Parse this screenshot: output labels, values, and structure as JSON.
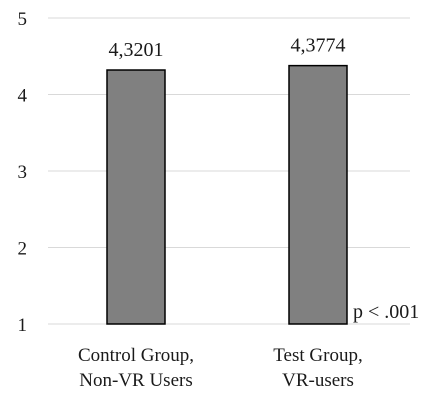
{
  "chart_data": {
    "type": "bar",
    "categories": [
      [
        "Control Group,",
        "Non-VR Users"
      ],
      [
        "Test Group,",
        "VR-users"
      ]
    ],
    "values": [
      4.3201,
      4.3774
    ],
    "data_labels": [
      "4,3201",
      "4,3774"
    ],
    "ylim": [
      1,
      5
    ],
    "yticks": [
      1,
      2,
      3,
      4,
      5
    ],
    "ytick_labels": [
      "1",
      "2",
      "3",
      "4",
      "5"
    ],
    "grid": true,
    "bar_color": "#808080",
    "bar_edge_color": "#000000",
    "grid_color": "#d9d9d9",
    "annotation": "p < .001"
  }
}
